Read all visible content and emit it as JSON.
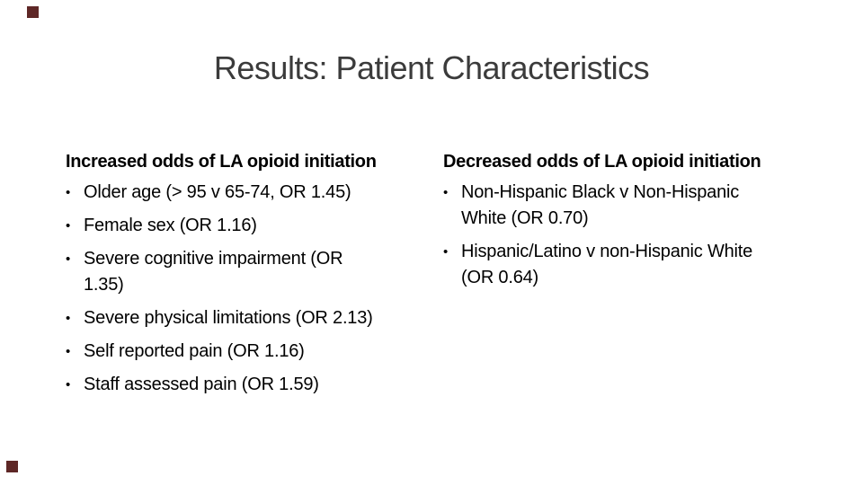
{
  "slide": {
    "title": "Results: Patient Characteristics",
    "accent_color": "#5e2726",
    "bullet_glyph": "•",
    "columns": [
      {
        "heading": "Increased odds of LA opioid initiation",
        "bullets": [
          "Older age (> 95 v 65-74, OR 1.45)",
          "Female sex (OR 1.16)",
          "Severe cognitive impairment (OR\n1.35)",
          "Severe physical limitations (OR 2.13)",
          "Self reported pain (OR 1.16)",
          "Staff assessed pain (OR 1.59)"
        ]
      },
      {
        "heading": "Decreased odds of LA opioid initiation",
        "bullets": [
          "Non-Hispanic Black v Non-Hispanic\nWhite (OR 0.70)",
          "Hispanic/Latino v non-Hispanic White\n(OR 0.64)"
        ]
      }
    ]
  }
}
